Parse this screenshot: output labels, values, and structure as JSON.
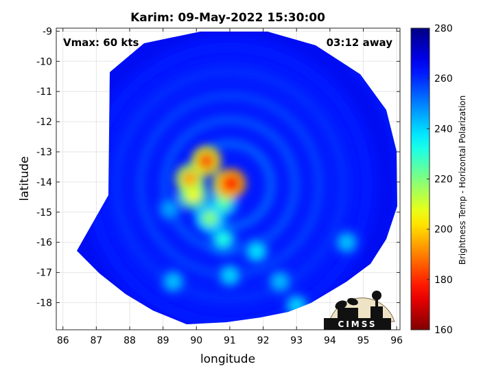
{
  "chart_data": {
    "type": "heatmap",
    "title": "Karim: 09-May-2022 15:30:00",
    "xlabel": "longitude",
    "ylabel": "latitude",
    "xlim": [
      85.8,
      96.1
    ],
    "ylim": [
      -18.9,
      -8.9
    ],
    "xticks": [
      86,
      87,
      88,
      89,
      90,
      91,
      92,
      93,
      94,
      95,
      96
    ],
    "yticks": [
      -9,
      -10,
      -11,
      -12,
      -13,
      -14,
      -15,
      -16,
      -17,
      -18
    ],
    "annotations": {
      "vmax": "Vmax: 60 kts",
      "away": "03:12 away"
    },
    "colorbar": {
      "label": "Brightness Temp - Horizontal Polarization",
      "range": [
        160,
        280
      ],
      "ticks": [
        160,
        180,
        200,
        220,
        240,
        260,
        280
      ],
      "colormap": "jet"
    },
    "swath": {
      "center_lon": 91.0,
      "center_lat": -14.1,
      "background_value": 262,
      "features": [
        {
          "lon": 90.9,
          "lat": -14.1,
          "value": 195
        },
        {
          "lon": 91.05,
          "lat": -14.05,
          "value": 175
        },
        {
          "lon": 90.3,
          "lat": -13.3,
          "value": 185
        },
        {
          "lon": 89.8,
          "lat": -13.9,
          "value": 195
        },
        {
          "lon": 89.9,
          "lat": -14.4,
          "value": 205
        },
        {
          "lon": 90.4,
          "lat": -15.2,
          "value": 220
        },
        {
          "lon": 90.8,
          "lat": -14.7,
          "value": 225
        },
        {
          "lon": 90.8,
          "lat": -15.9,
          "value": 232
        },
        {
          "lon": 91.8,
          "lat": -16.3,
          "value": 238
        },
        {
          "lon": 89.3,
          "lat": -17.3,
          "value": 242
        },
        {
          "lon": 91.0,
          "lat": -17.1,
          "value": 240
        },
        {
          "lon": 92.5,
          "lat": -17.3,
          "value": 243
        },
        {
          "lon": 94.5,
          "lat": -16.0,
          "value": 242
        },
        {
          "lon": 93.0,
          "lat": -18.1,
          "value": 240
        },
        {
          "lon": 89.2,
          "lat": -14.9,
          "value": 246
        }
      ]
    }
  },
  "logo": {
    "text": "CIMSS"
  }
}
